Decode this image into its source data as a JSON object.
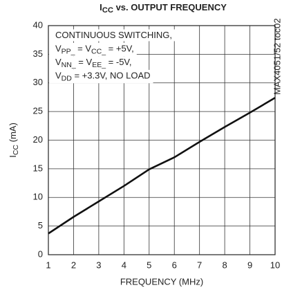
{
  "chart_data": {
    "type": "line",
    "title_parts": [
      {
        "text": "I",
        "sub": false
      },
      {
        "text": "CC",
        "sub": true
      },
      {
        "text": " vs. OUTPUT FREQUENCY",
        "sub": false
      }
    ],
    "y_label_parts": [
      {
        "text": "I",
        "sub": false
      },
      {
        "text": "CC",
        "sub": true
      },
      {
        "text": " (mA)",
        "sub": false
      }
    ],
    "x_label": "FREQUENCY (MHz)",
    "annotation_lines": [
      [
        {
          "text": "CONTINUOUS SWITCHING,",
          "sub": false
        }
      ],
      [
        {
          "text": "V",
          "sub": false
        },
        {
          "text": "PP_",
          "sub": true
        },
        {
          "text": " = V",
          "sub": false
        },
        {
          "text": "CC_",
          "sub": true
        },
        {
          "text": " = +5V,",
          "sub": false
        }
      ],
      [
        {
          "text": "V",
          "sub": false
        },
        {
          "text": "NN_",
          "sub": true
        },
        {
          "text": " = V",
          "sub": false
        },
        {
          "text": "EE_",
          "sub": true
        },
        {
          "text": " = -5V,",
          "sub": false
        }
      ],
      [
        {
          "text": "V",
          "sub": false
        },
        {
          "text": "DD",
          "sub": true
        },
        {
          "text": " = +3.3V, NO LOAD",
          "sub": false
        }
      ]
    ],
    "watermark": "MAX4051/52 toc02",
    "x": [
      1,
      2,
      3,
      4,
      5,
      6,
      7,
      8,
      9,
      10
    ],
    "series": [
      {
        "name": "ICC",
        "color": "#111111",
        "values": [
          3.7,
          6.6,
          9.3,
          12,
          14.9,
          17,
          19.7,
          22.3,
          24.8,
          27.4
        ]
      }
    ],
    "xlim": [
      1,
      10
    ],
    "xticks": [
      1,
      2,
      3,
      4,
      5,
      6,
      7,
      8,
      9,
      10
    ],
    "ylim": [
      0,
      40
    ],
    "yticks": [
      0,
      5,
      10,
      15,
      20,
      25,
      30,
      35,
      40
    ],
    "grid": true
  }
}
